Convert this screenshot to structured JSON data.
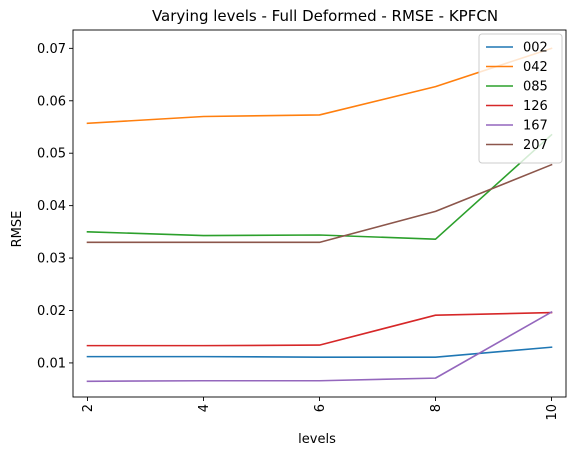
{
  "chart_data": {
    "type": "line",
    "title": "Varying levels - Full Deformed - RMSE - KPFCN",
    "xlabel": "levels",
    "ylabel": "RMSE",
    "x": [
      2,
      4,
      6,
      8,
      10
    ],
    "x_ticks": [
      "2",
      "4",
      "6",
      "8",
      "10"
    ],
    "y_ticks": [
      "0.01",
      "0.02",
      "0.03",
      "0.04",
      "0.05",
      "0.06",
      "0.07"
    ],
    "xlim": [
      1.75,
      10.25
    ],
    "ylim": [
      0.0035,
      0.0735
    ],
    "grid": false,
    "legend_position": "top-right",
    "series": [
      {
        "name": "002",
        "color": "#1f77b4",
        "values": [
          0.0112,
          0.0112,
          0.0111,
          0.0111,
          0.013
        ]
      },
      {
        "name": "042",
        "color": "#ff7f0e",
        "values": [
          0.0557,
          0.057,
          0.0573,
          0.0627,
          0.07
        ]
      },
      {
        "name": "085",
        "color": "#2ca02c",
        "values": [
          0.035,
          0.0343,
          0.0344,
          0.0336,
          0.0535
        ]
      },
      {
        "name": "126",
        "color": "#d62728",
        "values": [
          0.0133,
          0.0133,
          0.0134,
          0.0191,
          0.0196
        ]
      },
      {
        "name": "167",
        "color": "#9467bd",
        "values": [
          0.0065,
          0.0066,
          0.0066,
          0.0071,
          0.0197
        ]
      },
      {
        "name": "207",
        "color": "#8c564b",
        "values": [
          0.033,
          0.033,
          0.033,
          0.0389,
          0.0478
        ]
      }
    ]
  }
}
